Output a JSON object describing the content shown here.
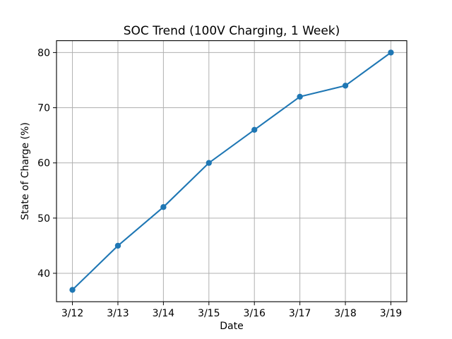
{
  "chart_data": {
    "type": "line",
    "title": "SOC Trend (100V Charging, 1 Week)",
    "xlabel": "Date",
    "ylabel": "State of Charge (%)",
    "categories": [
      "3/12",
      "3/13",
      "3/14",
      "3/15",
      "3/16",
      "3/17",
      "3/18",
      "3/19"
    ],
    "values": [
      37,
      45,
      52,
      60,
      66,
      72,
      74,
      80
    ],
    "yticks": [
      40,
      50,
      60,
      70,
      80
    ],
    "ylim": [
      34.85,
      82.15
    ],
    "xlim": [
      -0.35,
      7.35
    ],
    "grid": true,
    "legend": "none",
    "line_color": "#1f77b4",
    "marker": "circle",
    "grid_color": "#b0b0b0",
    "spine_color": "#000000",
    "background_color": "#ffffff"
  }
}
